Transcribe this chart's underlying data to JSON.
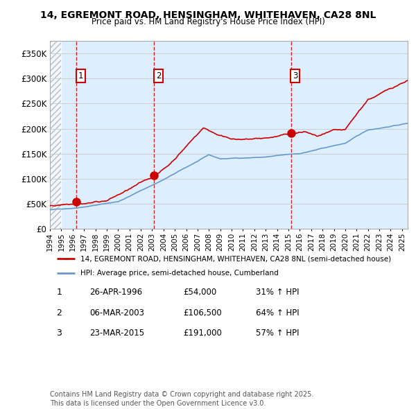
{
  "title1": "14, EGREMONT ROAD, HENSINGHAM, WHITEHAVEN, CA28 8NL",
  "title2": "Price paid vs. HM Land Registry's House Price Index (HPI)",
  "ylim": [
    0,
    375000
  ],
  "yticks": [
    0,
    50000,
    100000,
    150000,
    200000,
    250000,
    300000,
    350000
  ],
  "ytick_labels": [
    "£0",
    "£50K",
    "£100K",
    "£150K",
    "£200K",
    "£250K",
    "£300K",
    "£350K"
  ],
  "xmin": 1994.0,
  "xmax": 2025.5,
  "sale_dates": [
    1996.32,
    2003.18,
    2015.22
  ],
  "sale_prices": [
    54000,
    106500,
    191000
  ],
  "sale_labels": [
    "1",
    "2",
    "3"
  ],
  "legend_line1": "14, EGREMONT ROAD, HENSINGHAM, WHITEHAVEN, CA28 8NL (semi-detached house)",
  "legend_line2": "HPI: Average price, semi-detached house, Cumberland",
  "table_data": [
    [
      "1",
      "26-APR-1996",
      "£54,000",
      "31% ↑ HPI"
    ],
    [
      "2",
      "06-MAR-2003",
      "£106,500",
      "64% ↑ HPI"
    ],
    [
      "3",
      "23-MAR-2015",
      "£191,000",
      "57% ↑ HPI"
    ]
  ],
  "footer": "Contains HM Land Registry data © Crown copyright and database right 2025.\nThis data is licensed under the Open Government Licence v3.0.",
  "red_color": "#cc0000",
  "blue_color": "#6699cc",
  "grid_color": "#cccccc",
  "background_color": "#ddeeff"
}
